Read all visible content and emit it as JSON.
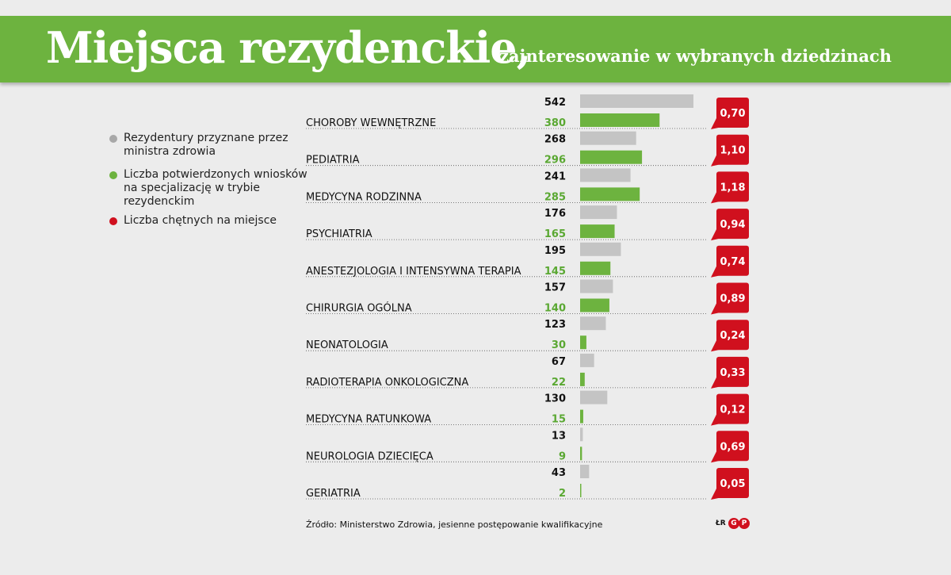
{
  "header": {
    "title": "Miejsca rezydenckie,",
    "subtitle": "zainteresowanie w wybranych dziedzinach"
  },
  "legend": [
    {
      "text": "Rezydentury przyznane przez ministra zdrowia",
      "color": "#a8a8a8"
    },
    {
      "text": "Liczba potwierdzonych wniosków na specjalizację w trybie rezydenckim",
      "color": "#6db33f"
    },
    {
      "text": "Liczba chętnych na miejsce",
      "color": "#d0101e"
    }
  ],
  "chart_data": {
    "type": "bar",
    "orientation": "horizontal",
    "categories": [
      "CHOROBY WEWNĘTRZNE",
      "PEDIATRIA",
      "MEDYCYNA RODZINNA",
      "PSYCHIATRIA",
      "ANESTEZJOLOGIA I INTENSYWNA TERAPIA",
      "CHIRURGIA OGÓLNA",
      "NEONATOLOGIA",
      "RADIOTERAPIA ONKOLOGICZNA",
      "MEDYCYNA RATUNKOWA",
      "NEUROLOGIA DZIECIĘCA",
      "GERIATRIA"
    ],
    "series": [
      {
        "name": "Rezydentury przyznane przez ministra zdrowia",
        "color": "#c4c4c4",
        "values": [
          542,
          268,
          241,
          176,
          195,
          157,
          123,
          67,
          130,
          13,
          43
        ]
      },
      {
        "name": "Liczba potwierdzonych wniosków na specjalizację w trybie rezydenckim",
        "color": "#6db33f",
        "values": [
          380,
          296,
          285,
          165,
          145,
          140,
          30,
          22,
          15,
          9,
          2
        ]
      },
      {
        "name": "Liczba chętnych na miejsce",
        "color": "#d0101e",
        "values": [
          "0,70",
          "1,10",
          "1,18",
          "0,94",
          "0,74",
          "0,89",
          "0,24",
          "0,33",
          "0,12",
          "0,69",
          "0,05"
        ]
      }
    ],
    "xlim": [
      0,
      542
    ]
  },
  "footer": {
    "source": "Źródło: Ministerstwo Zdrowia, jesienne postępowanie kwalifikacyjne",
    "logo_text": "ŁR",
    "logo_letters": [
      "G",
      "P"
    ]
  }
}
